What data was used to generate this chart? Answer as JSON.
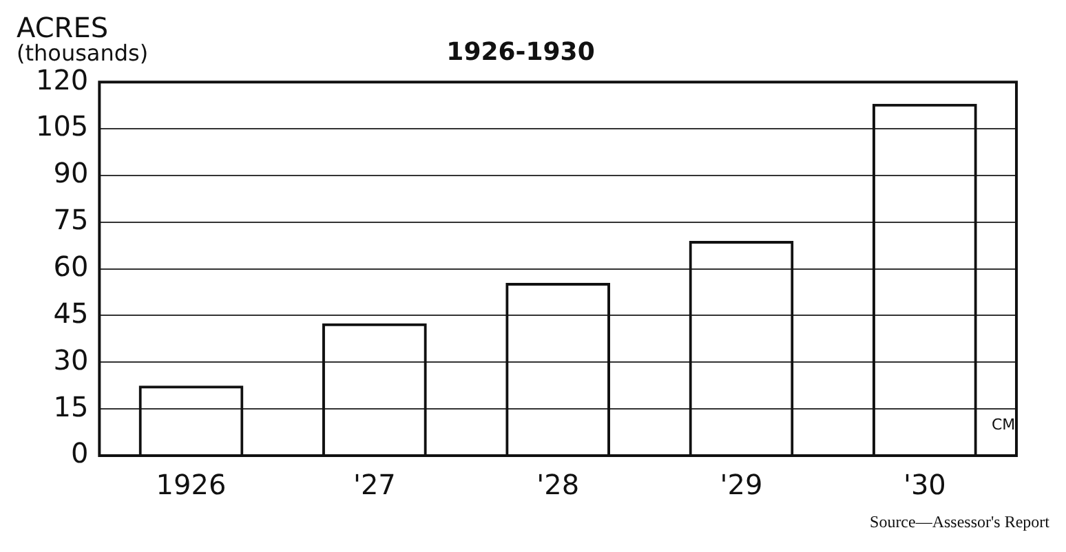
{
  "chart_data": {
    "type": "bar",
    "title": "1926-1930",
    "ylabel": "ACRES\n(thousands)",
    "categories": [
      "1926",
      "'27",
      "'28",
      "'29",
      "'30"
    ],
    "values": [
      22.5,
      42.5,
      55.5,
      69,
      113
    ],
    "color": "#111111",
    "ylim": [
      0,
      120
    ],
    "yticks": [
      0,
      15,
      30,
      45,
      60,
      75,
      90,
      105,
      120
    ],
    "grid": "y",
    "legend": false,
    "annotations": [
      "CM",
      "Source—Assessor's Report"
    ]
  }
}
